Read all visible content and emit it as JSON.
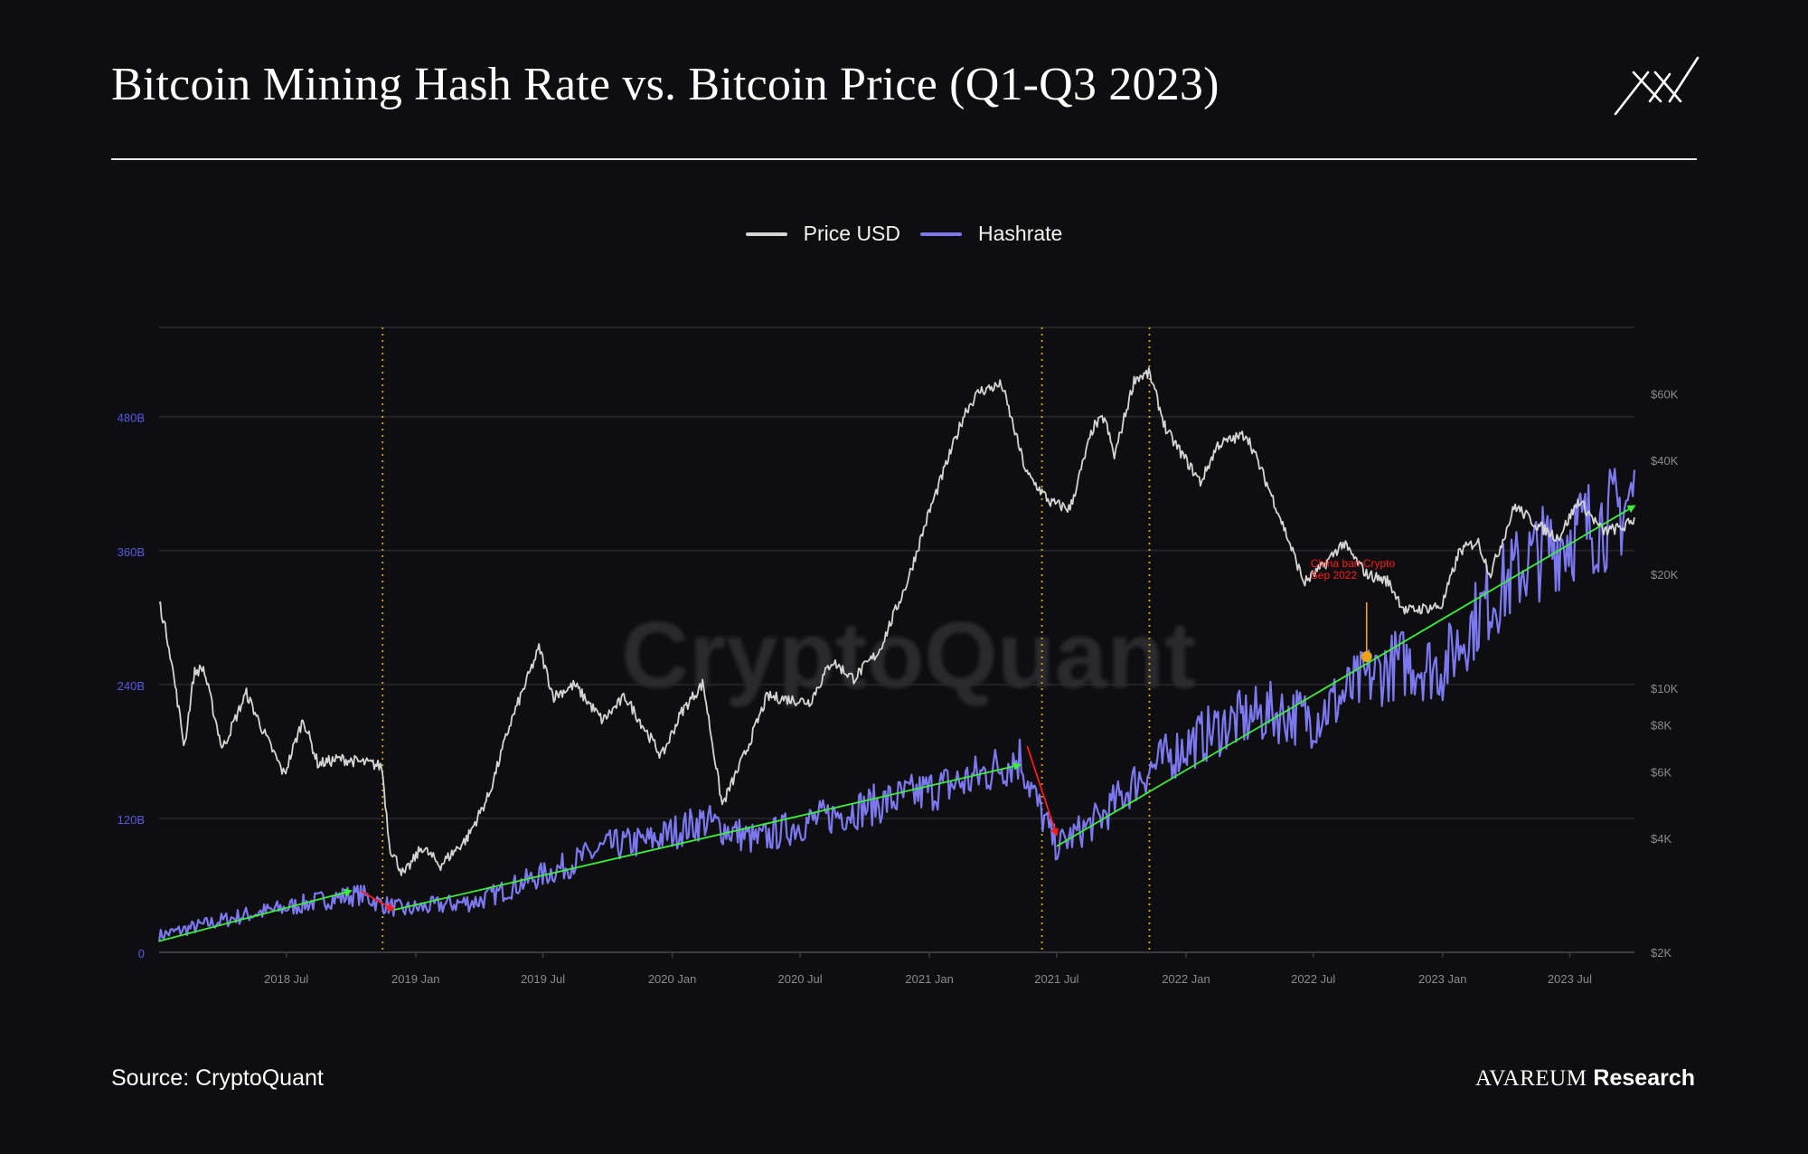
{
  "header": {
    "title": "Bitcoin Mining Hash Rate vs. Bitcoin Price (Q1-Q3 2023)"
  },
  "footer": {
    "source": "Source: CryptoQuant",
    "brand_name": "AVAREUM",
    "brand_suffix": "Research"
  },
  "watermark": "CryptoQuant",
  "colors": {
    "background": "#0e0e10",
    "price": "#d4d4d4",
    "hashrate": "#7b78f0",
    "trend_up": "#3bf03b",
    "trend_down": "#ff1a1a",
    "event_lines": "#e8a21c",
    "annotation": "#ff1a1a"
  },
  "chart_data": {
    "type": "line",
    "legend": [
      {
        "name": "Price USD",
        "color": "#d4d4d4"
      },
      {
        "name": "Hashrate",
        "color": "#7b78f0"
      }
    ],
    "legend_position": "top-center",
    "x_ticks": [
      "2018 Jul",
      "2019 Jan",
      "2019 Jul",
      "2020 Jan",
      "2020 Jul",
      "2021 Jan",
      "2021 Jul",
      "2022 Jan",
      "2022 Jul",
      "2023 Jan",
      "2023 Jul"
    ],
    "x_range": [
      "2018-01-01",
      "2023-10-01"
    ],
    "y_left": {
      "ticks": [
        "0",
        "120B",
        "240B",
        "360B",
        "480B"
      ],
      "values": [
        0,
        120,
        240,
        360,
        480
      ],
      "range": [
        0,
        560
      ],
      "unit": "B"
    },
    "y_right": {
      "scale": "log",
      "ticks": [
        "$2K",
        "$4K",
        "$6K",
        "$8K",
        "$10K",
        "$20K",
        "$40K",
        "$60K"
      ],
      "values": [
        2000,
        4000,
        6000,
        8000,
        10000,
        20000,
        40000,
        60000
      ],
      "range": [
        2000,
        90000
      ]
    },
    "grid": true,
    "series": [
      {
        "name": "Price USD",
        "axis": "right",
        "points": [
          [
            "2018-01-01",
            17000
          ],
          [
            "2018-01-15",
            13000
          ],
          [
            "2018-02-06",
            7000
          ],
          [
            "2018-02-20",
            11000
          ],
          [
            "2018-03-05",
            11300
          ],
          [
            "2018-04-01",
            6900
          ],
          [
            "2018-05-05",
            9700
          ],
          [
            "2018-06-01",
            7500
          ],
          [
            "2018-06-28",
            5900
          ],
          [
            "2018-07-25",
            8300
          ],
          [
            "2018-08-15",
            6300
          ],
          [
            "2018-09-15",
            6500
          ],
          [
            "2018-10-31",
            6300
          ],
          [
            "2018-11-14",
            6200
          ],
          [
            "2018-11-25",
            3800
          ],
          [
            "2018-12-15",
            3200
          ],
          [
            "2019-01-10",
            3800
          ],
          [
            "2019-02-05",
            3400
          ],
          [
            "2019-03-15",
            4000
          ],
          [
            "2019-04-15",
            5200
          ],
          [
            "2019-05-15",
            8000
          ],
          [
            "2019-06-26",
            12800
          ],
          [
            "2019-07-16",
            9500
          ],
          [
            "2019-08-15",
            10200
          ],
          [
            "2019-09-24",
            8200
          ],
          [
            "2019-10-26",
            9500
          ],
          [
            "2019-12-17",
            6600
          ],
          [
            "2020-01-15",
            8700
          ],
          [
            "2020-02-14",
            10300
          ],
          [
            "2020-03-12",
            4900
          ],
          [
            "2020-04-15",
            6800
          ],
          [
            "2020-05-15",
            9500
          ],
          [
            "2020-07-15",
            9200
          ],
          [
            "2020-08-15",
            11800
          ],
          [
            "2020-09-15",
            10600
          ],
          [
            "2020-10-21",
            12500
          ],
          [
            "2020-11-30",
            19000
          ],
          [
            "2020-12-31",
            29000
          ],
          [
            "2021-02-21",
            54000
          ],
          [
            "2021-03-13",
            61000
          ],
          [
            "2021-04-14",
            63500
          ],
          [
            "2021-05-19",
            37000
          ],
          [
            "2021-06-22",
            31000
          ],
          [
            "2021-07-20",
            29800
          ],
          [
            "2021-08-22",
            49000
          ],
          [
            "2021-09-07",
            52000
          ],
          [
            "2021-09-21",
            41000
          ],
          [
            "2021-10-20",
            66000
          ],
          [
            "2021-11-10",
            68000
          ],
          [
            "2021-12-04",
            48000
          ],
          [
            "2022-01-22",
            35000
          ],
          [
            "2022-02-15",
            44000
          ],
          [
            "2022-03-28",
            47000
          ],
          [
            "2022-05-10",
            30000
          ],
          [
            "2022-06-18",
            19000
          ],
          [
            "2022-07-15",
            21000
          ],
          [
            "2022-08-12",
            24200
          ],
          [
            "2022-09-15",
            20000
          ],
          [
            "2022-10-15",
            19200
          ],
          [
            "2022-11-09",
            16000
          ],
          [
            "2022-12-31",
            16500
          ],
          [
            "2023-01-25",
            23000
          ],
          [
            "2023-02-20",
            24500
          ],
          [
            "2023-03-10",
            20000
          ],
          [
            "2023-04-14",
            30400
          ],
          [
            "2023-05-15",
            27000
          ],
          [
            "2023-06-15",
            25000
          ],
          [
            "2023-07-14",
            31400
          ],
          [
            "2023-08-17",
            26000
          ],
          [
            "2023-09-15",
            26600
          ],
          [
            "2023-10-01",
            28000
          ]
        ]
      },
      {
        "name": "Hashrate",
        "axis": "left",
        "points": [
          [
            "2018-01-01",
            15
          ],
          [
            "2018-03-01",
            24
          ],
          [
            "2018-05-01",
            33
          ],
          [
            "2018-07-01",
            40
          ],
          [
            "2018-08-31",
            48
          ],
          [
            "2018-10-15",
            52
          ],
          [
            "2018-11-10",
            44
          ],
          [
            "2018-12-15",
            38
          ],
          [
            "2019-02-01",
            42
          ],
          [
            "2019-04-01",
            46
          ],
          [
            "2019-06-01",
            62
          ],
          [
            "2019-08-01",
            77
          ],
          [
            "2019-10-01",
            95
          ],
          [
            "2019-12-01",
            100
          ],
          [
            "2020-02-15",
            118
          ],
          [
            "2020-05-01",
            100
          ],
          [
            "2020-07-01",
            115
          ],
          [
            "2020-10-01",
            130
          ],
          [
            "2021-01-01",
            145
          ],
          [
            "2021-03-01",
            155
          ],
          [
            "2021-05-10",
            175
          ],
          [
            "2021-06-05",
            130
          ],
          [
            "2021-07-01",
            95
          ],
          [
            "2021-09-01",
            120
          ],
          [
            "2021-11-01",
            160
          ],
          [
            "2022-01-01",
            185
          ],
          [
            "2022-03-01",
            205
          ],
          [
            "2022-05-01",
            215
          ],
          [
            "2022-07-01",
            210
          ],
          [
            "2022-09-15",
            245
          ],
          [
            "2022-11-01",
            260
          ],
          [
            "2023-01-01",
            255
          ],
          [
            "2023-03-01",
            310
          ],
          [
            "2023-05-01",
            350
          ],
          [
            "2023-07-01",
            375
          ],
          [
            "2023-09-01",
            390
          ],
          [
            "2023-10-01",
            410
          ]
        ]
      }
    ],
    "trend_lines": [
      {
        "direction": "up",
        "from": [
          "2018-01-01",
          10
        ],
        "to": [
          "2018-10-01",
          55
        ]
      },
      {
        "direction": "down",
        "from": [
          "2018-10-15",
          55
        ],
        "to": [
          "2018-12-01",
          38
        ]
      },
      {
        "direction": "up",
        "from": [
          "2018-12-01",
          38
        ],
        "to": [
          "2021-05-10",
          168
        ]
      },
      {
        "direction": "down",
        "from": [
          "2021-05-20",
          185
        ],
        "to": [
          "2021-07-01",
          105
        ]
      },
      {
        "direction": "up",
        "from": [
          "2021-07-01",
          95
        ],
        "to": [
          "2023-10-01",
          400
        ]
      }
    ],
    "event_lines": [
      "2018-11-15",
      "2021-06-10",
      "2021-11-10"
    ],
    "annotations": [
      {
        "text_line1": "China ban Crypto",
        "text_line2": "Sep 2022",
        "x": "2022-09-15",
        "y": 265
      }
    ]
  }
}
